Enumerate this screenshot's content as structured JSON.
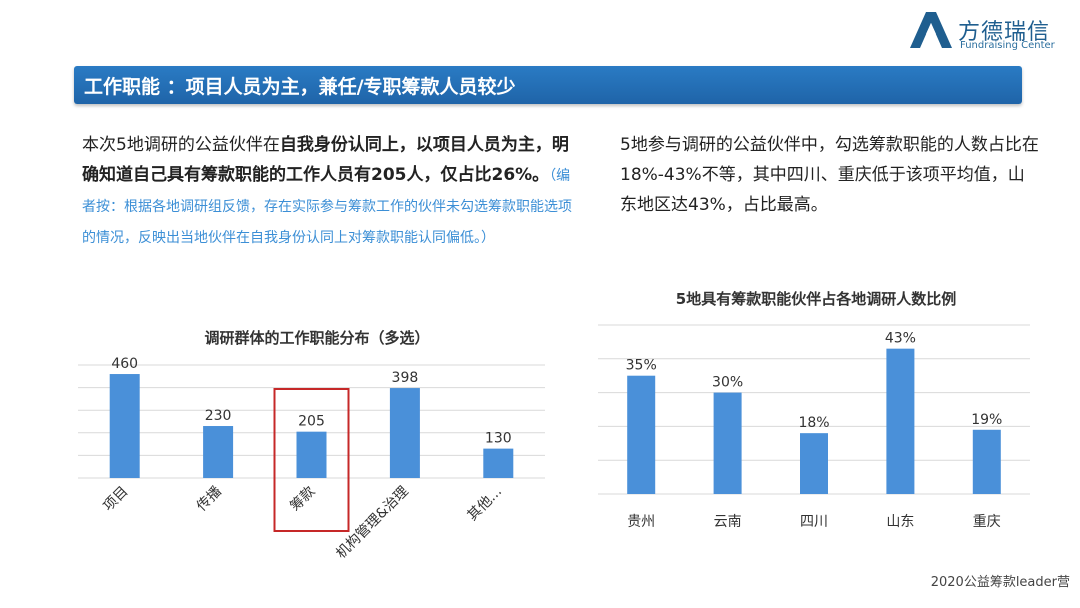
{
  "logo": {
    "brand": "方德瑞信",
    "sub": "Fundraising Center"
  },
  "banner": {
    "title": "工作职能 ：项目人员为主，兼任/专职筹款人员较少"
  },
  "left_text": {
    "p1": "本次5地调研的公益伙伴在",
    "p1_bold": "自我身份认同上，以项目人员为主，明确知道自己具有筹款职能的工作人员有205人，仅占比26%。",
    "note": "（编者按：根据各地调研组反馈，存在实际参与筹款工作的伙伴未勾选筹款职能选项的情况，反映出当地伙伴在自我身份认同上对筹款职能认同偏低。）"
  },
  "right_text": "5地参与调研的公益伙伴中，勾选筹款职能的人数占比在18%-43%不等，其中四川、重庆低于该项平均值，山东地区达43%，占比最高。",
  "chart_data": [
    {
      "type": "bar",
      "title": "调研群体的工作职能分布（多选）",
      "categories": [
        "项目",
        "传播",
        "筹款",
        "机构管理&治理",
        "其他..."
      ],
      "values": [
        460,
        230,
        205,
        398,
        130
      ],
      "data_labels": [
        "460",
        "230",
        "205",
        "398",
        "130"
      ],
      "highlight": "筹款",
      "ylim": [
        0,
        500
      ],
      "grid": true,
      "bar_color": "#4a90d9",
      "highlight_color": "#c62828"
    },
    {
      "type": "bar",
      "title": "5地具有筹款职能伙伴占各地调研人数比例",
      "categories": [
        "贵州",
        "云南",
        "四川",
        "山东",
        "重庆"
      ],
      "values": [
        35,
        30,
        18,
        43,
        19
      ],
      "data_labels": [
        "35%",
        "30%",
        "18%",
        "43%",
        "19%"
      ],
      "ylim": [
        0,
        50
      ],
      "grid": true,
      "bar_color": "#4a90d9"
    }
  ],
  "footer": "2020公益筹款leader营"
}
